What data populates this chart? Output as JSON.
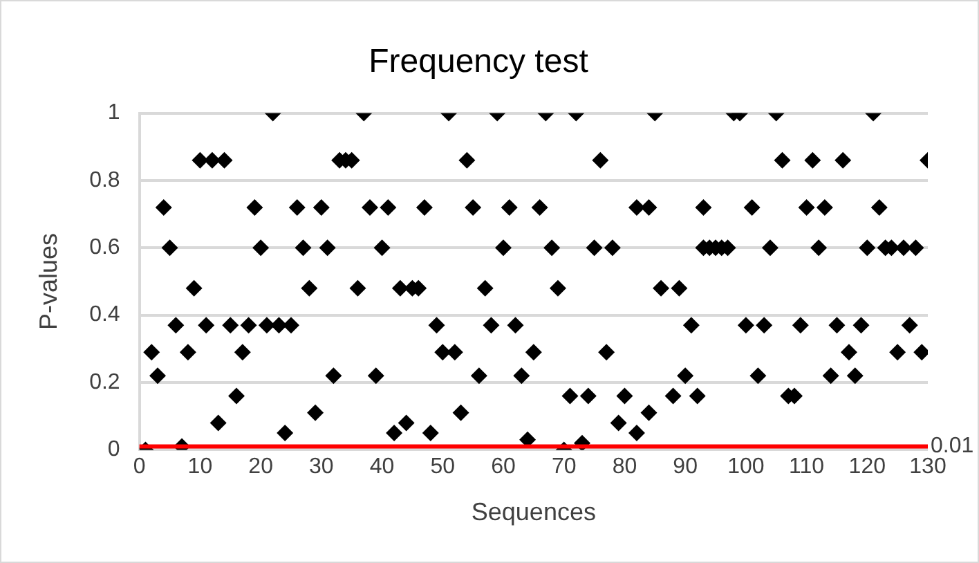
{
  "chart_data": {
    "type": "scatter",
    "title": "Frequency test",
    "xlabel": "Sequences",
    "ylabel": "P-values",
    "x": [
      1,
      2,
      3,
      4,
      5,
      6,
      7,
      8,
      9,
      10,
      11,
      12,
      13,
      14,
      15,
      16,
      17,
      18,
      19,
      20,
      21,
      22,
      23,
      24,
      25,
      26,
      27,
      28,
      29,
      30,
      31,
      32,
      33,
      34,
      35,
      36,
      37,
      38,
      39,
      40,
      41,
      42,
      43,
      44,
      45,
      46,
      47,
      48,
      49,
      50,
      51,
      52,
      53,
      54,
      55,
      56,
      57,
      58,
      59,
      60,
      61,
      62,
      63,
      64,
      65,
      66,
      67,
      68,
      69,
      70,
      71,
      72,
      73,
      74,
      75,
      76,
      77,
      78,
      79,
      80,
      82,
      82,
      84,
      84,
      85,
      86,
      88,
      89,
      90,
      91,
      92,
      93,
      93,
      94,
      95,
      96,
      97,
      98,
      99,
      100,
      101,
      102,
      103,
      104,
      105,
      106,
      107,
      108,
      109,
      110,
      111,
      112,
      113,
      114,
      115,
      116,
      117,
      118,
      119,
      120,
      121,
      122,
      123,
      124,
      125,
      126,
      127,
      128,
      129,
      130
    ],
    "values": [
      0,
      0.29,
      0.22,
      0.72,
      0.6,
      0.37,
      0.01,
      0.29,
      0.48,
      0.86,
      0.37,
      0.86,
      0.08,
      0.86,
      0.37,
      0.16,
      0.29,
      0.37,
      0.72,
      0.6,
      0.37,
      1,
      0.37,
      0.05,
      0.37,
      0.72,
      0.6,
      0.48,
      0.11,
      0.72,
      0.6,
      0.22,
      0.86,
      0.86,
      0.86,
      0.48,
      1,
      0.72,
      0.22,
      0.6,
      0.72,
      0.05,
      0.48,
      0.08,
      0.48,
      0.48,
      0.72,
      0.05,
      0.37,
      0.29,
      1,
      0.29,
      0.11,
      0.86,
      0.72,
      0.22,
      0.48,
      0.37,
      1,
      0.6,
      0.72,
      0.37,
      0.22,
      0.03,
      0.29,
      0.72,
      1,
      0.6,
      0.48,
      0,
      0.16,
      1,
      0.02,
      0.16,
      0.6,
      0.86,
      0.29,
      0.6,
      0.08,
      0.16,
      0.72,
      0.05,
      0.11,
      0.72,
      1,
      0.48,
      0.16,
      0.48,
      0.22,
      0.37,
      0.16,
      0.72,
      0.6,
      0.6,
      0.6,
      0.6,
      0.6,
      1,
      1,
      0.37,
      0.72,
      0.22,
      0.37,
      0.6,
      1,
      0.86,
      0.16,
      0.16,
      0.37,
      0.72,
      0.86,
      0.6,
      0.72,
      0.22,
      0.37,
      0.86,
      0.29,
      0.22,
      0.37,
      0.6,
      1,
      0.72,
      0.6,
      0.6,
      0.29,
      0.6,
      0.37,
      0.6,
      0.29,
      0.86
    ],
    "color": "#000000",
    "marker": "diamond",
    "xlim": [
      0,
      130
    ],
    "xticks": [
      0,
      10,
      20,
      30,
      40,
      50,
      60,
      70,
      80,
      90,
      100,
      110,
      120,
      130
    ],
    "ylim": [
      0,
      1
    ],
    "yticks": [
      0,
      0.2,
      0.4,
      0.6,
      0.8,
      1
    ],
    "grid": "y",
    "ref_lines": [
      {
        "axis": "y",
        "value": 0.01,
        "label": "0.01",
        "color": "#ff0000"
      }
    ]
  }
}
